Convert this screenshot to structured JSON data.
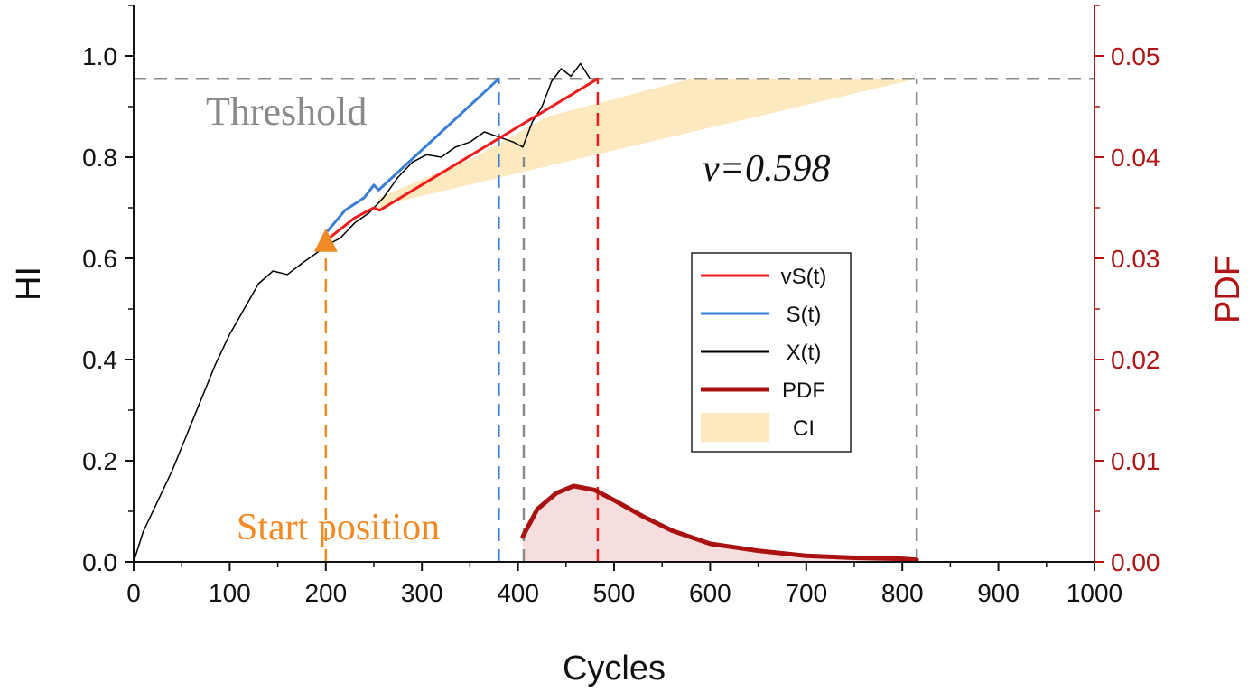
{
  "chart_data": {
    "type": "line",
    "xlabel": "Cycles",
    "ylabel": "HI",
    "y2label": "PDF",
    "xlim": [
      0,
      1000
    ],
    "ylim": [
      0,
      1.1
    ],
    "y2lim": [
      0,
      0.055
    ],
    "xticks": [
      "0",
      "100",
      "200",
      "300",
      "400",
      "500",
      "600",
      "700",
      "800",
      "900",
      "1000"
    ],
    "yticks": [
      "0.0",
      "0.2",
      "0.4",
      "0.6",
      "0.8",
      "1.0"
    ],
    "y2ticks": [
      "0.00",
      "0.01",
      "0.02",
      "0.03",
      "0.04",
      "0.05"
    ],
    "threshold": 0.955,
    "threshold_label": "Threshold",
    "start_label": "Start position",
    "nu_label": "ν=0.598",
    "colors": {
      "vS": "#ee1c1c",
      "S": "#3a7fd5",
      "X": "#000000",
      "PDF": "#aa1111",
      "CI": "#fde9c0",
      "pdf_fill": "#f6dede",
      "start": "#f08a24",
      "threshold": "#8a8a8a"
    },
    "series": [
      {
        "name": "X(t)",
        "points": [
          [
            0,
            0.0
          ],
          [
            10,
            0.06
          ],
          [
            25,
            0.12
          ],
          [
            40,
            0.18
          ],
          [
            55,
            0.25
          ],
          [
            70,
            0.32
          ],
          [
            85,
            0.39
          ],
          [
            100,
            0.45
          ],
          [
            115,
            0.5
          ],
          [
            130,
            0.55
          ],
          [
            145,
            0.575
          ],
          [
            160,
            0.568
          ],
          [
            175,
            0.59
          ],
          [
            190,
            0.61
          ],
          [
            200,
            0.625
          ],
          [
            215,
            0.64
          ],
          [
            230,
            0.67
          ],
          [
            245,
            0.69
          ],
          [
            260,
            0.72
          ],
          [
            275,
            0.76
          ],
          [
            290,
            0.79
          ],
          [
            305,
            0.805
          ],
          [
            320,
            0.8
          ],
          [
            335,
            0.82
          ],
          [
            350,
            0.83
          ],
          [
            365,
            0.85
          ],
          [
            380,
            0.84
          ],
          [
            395,
            0.83
          ],
          [
            405,
            0.82
          ],
          [
            415,
            0.87
          ],
          [
            425,
            0.9
          ],
          [
            435,
            0.95
          ],
          [
            445,
            0.975
          ],
          [
            455,
            0.96
          ],
          [
            465,
            0.985
          ],
          [
            475,
            0.955
          ]
        ]
      },
      {
        "name": "S(t)",
        "points": [
          [
            200,
            0.65
          ],
          [
            220,
            0.695
          ],
          [
            240,
            0.72
          ],
          [
            250,
            0.745
          ],
          [
            255,
            0.735
          ],
          [
            380,
            0.955
          ]
        ]
      },
      {
        "name": "vS(t)",
        "points": [
          [
            200,
            0.635
          ],
          [
            230,
            0.68
          ],
          [
            250,
            0.7
          ],
          [
            256,
            0.695
          ],
          [
            483,
            0.955
          ]
        ]
      },
      {
        "name": "PDF",
        "axis": "right",
        "points": [
          [
            405,
            0.0025
          ],
          [
            420,
            0.0052
          ],
          [
            440,
            0.0068
          ],
          [
            458,
            0.0075
          ],
          [
            480,
            0.0071
          ],
          [
            500,
            0.0061
          ],
          [
            530,
            0.0045
          ],
          [
            560,
            0.0031
          ],
          [
            600,
            0.0018
          ],
          [
            650,
            0.0011
          ],
          [
            700,
            0.0006
          ],
          [
            750,
            0.0004
          ],
          [
            800,
            0.0003
          ],
          [
            815,
            0.0002
          ]
        ]
      }
    ],
    "ci_band": [
      [
        255,
        0.69
      ],
      [
        270,
        0.71
      ],
      [
        815,
        0.955
      ],
      [
        580,
        0.955
      ],
      [
        430,
        0.88
      ],
      [
        355,
        0.8
      ],
      [
        255,
        0.72
      ]
    ],
    "vlines": [
      {
        "x": 200,
        "from": 0,
        "to": 0.62,
        "color": "start"
      },
      {
        "x": 380,
        "from": 0,
        "to": 0.955,
        "color": "S"
      },
      {
        "x": 406,
        "from": 0,
        "to": 0.8,
        "color": "threshold"
      },
      {
        "x": 483,
        "from": 0,
        "to": 0.955,
        "color": "vS"
      },
      {
        "x": 815,
        "from": 0,
        "to": 0.955,
        "color": "threshold"
      }
    ],
    "start_point": [
      200,
      0.62
    ],
    "legend": {
      "position": "center-right",
      "entries": [
        {
          "label": "vS(t)",
          "kind": "line",
          "color": "vS"
        },
        {
          "label": "S(t)",
          "kind": "line",
          "color": "S"
        },
        {
          "label": "X(t)",
          "kind": "line",
          "color": "X"
        },
        {
          "label": "PDF",
          "kind": "thickline",
          "color": "PDF"
        },
        {
          "label": "CI",
          "kind": "patch",
          "color": "CI"
        }
      ]
    }
  }
}
